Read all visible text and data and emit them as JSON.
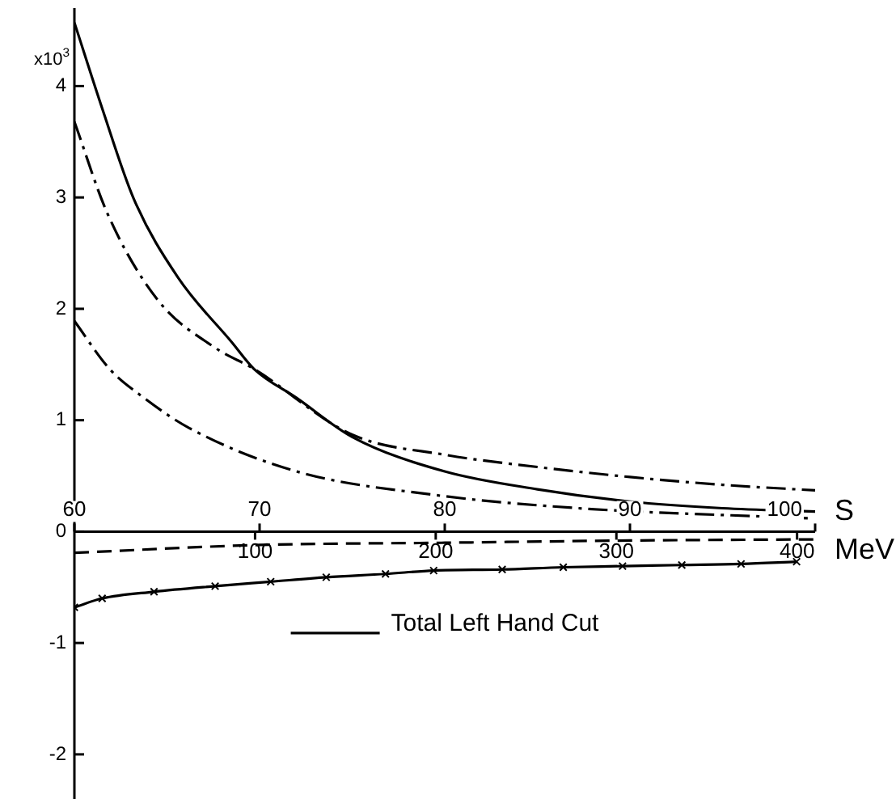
{
  "chart_data": {
    "type": "line",
    "xlabel": "S",
    "x2label": "MeV",
    "xlim": [
      60,
      100
    ],
    "xticks": [
      60,
      70,
      80,
      90,
      100
    ],
    "x2lim": [
      0,
      410
    ],
    "x2ticks": [
      100,
      200,
      300,
      400
    ],
    "ylim": [
      -2.4,
      4.7
    ],
    "yticks": [
      -2,
      -1,
      0,
      1,
      2,
      {
        "value": 3,
        "label": "3"
      },
      4
    ],
    "ylabel": "x10$^{3}$",
    "legend": "bottom",
    "series": [
      {
        "name": "Total Left Hand Cut",
        "color": "#000000",
        "line_style": "solid",
        "x": [
          60,
          61.5,
          63.2,
          65.6,
          68.5,
          69.7,
          72,
          75,
          80,
          85,
          90,
          95,
          100
        ],
        "values": [
          4.57,
          3.8,
          2.99,
          2.28,
          1.7,
          1.46,
          1.2,
          0.85,
          0.54,
          0.38,
          0.27,
          0.21,
          0.18
        ]
      },
      {
        "color": "#000000",
        "line_style": "dashdot",
        "x": [
          60,
          61.8,
          64.5,
          67.6,
          69.7,
          75,
          80,
          85,
          90,
          95,
          100
        ],
        "values": [
          3.68,
          2.85,
          2.08,
          1.65,
          1.46,
          0.87,
          0.69,
          0.58,
          0.49,
          0.42,
          0.37
        ]
      },
      {
        "color": "#000000",
        "line_style": "dashdot",
        "x": [
          60,
          61.9,
          63.6,
          66.2,
          72,
          79.4,
          87.2,
          99.6
        ],
        "values": [
          1.89,
          1.46,
          1.22,
          0.93,
          0.54,
          0.33,
          0.21,
          0.12
        ]
      },
      {
        "color": "#000000",
        "line_style": "dashed",
        "x": [
          60,
          70,
          80,
          90,
          100
        ],
        "values": [
          -0.19,
          -0.12,
          -0.1,
          -0.08,
          -0.07
        ]
      },
      {
        "color": "#000000",
        "line_style": "solid",
        "marker": "cross",
        "x": [
          60,
          61.5,
          64.3,
          67.6,
          70.6,
          73.6,
          76.8,
          79.4,
          83.1,
          86.4,
          89.6,
          92.8,
          96,
          99
        ],
        "values": [
          -0.68,
          -0.6,
          -0.54,
          -0.49,
          -0.45,
          -0.41,
          -0.38,
          -0.35,
          -0.34,
          -0.32,
          -0.31,
          -0.3,
          -0.29,
          -0.27
        ]
      }
    ]
  }
}
